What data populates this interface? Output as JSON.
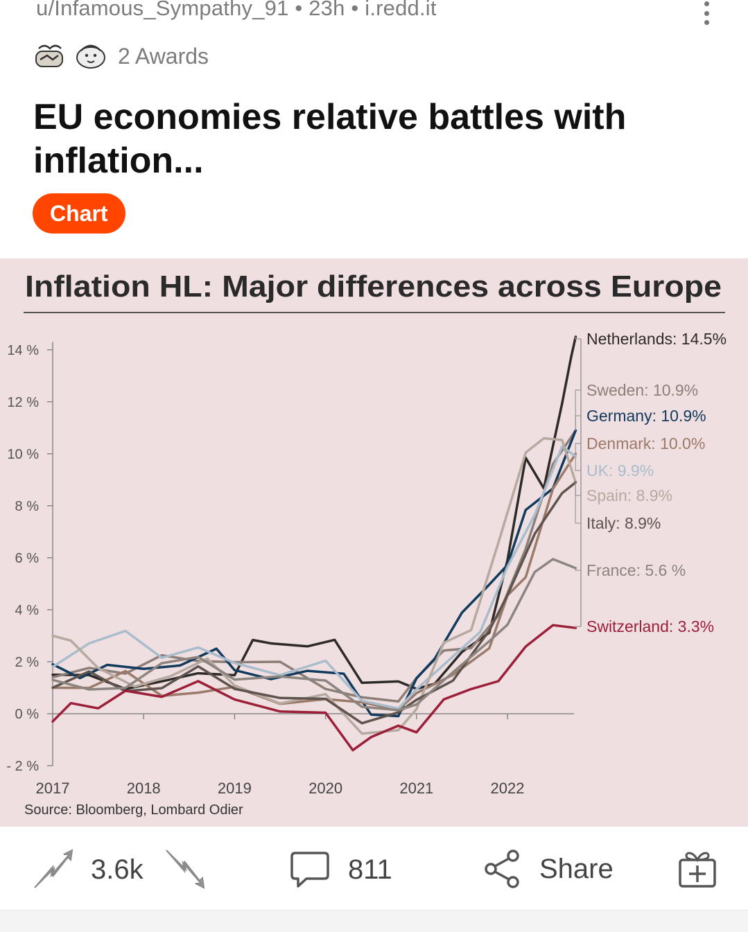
{
  "post": {
    "meta": "u/Infamous_Sympathy_91 • 23h • i.redd.it",
    "awards_label": "2 Awards",
    "title": "EU economies relative battles with inflation...",
    "flair": "Chart",
    "flair_color": "#ff4500"
  },
  "actions": {
    "score": "3.6k",
    "comments": "811",
    "share_label": "Share"
  },
  "icons": [
    "more-vert-icon",
    "award-wholesome-icon",
    "award-seal-icon",
    "upvote-icon",
    "downvote-icon",
    "comment-icon",
    "share-icon",
    "gift-award-icon"
  ],
  "chart_data": {
    "type": "line",
    "title": "Inflation HL: Major differences across Europe",
    "source": "Source: Bloomberg, Lombard Odier",
    "ylim": [
      -2,
      14.5
    ],
    "yticks": [
      -2,
      0,
      2,
      4,
      6,
      8,
      10,
      12,
      14
    ],
    "ytick_labels": [
      "- 2 %",
      "0 %",
      "2 %",
      "4 %",
      "6 %",
      "8 %",
      "10 %",
      "12 %",
      "14 %"
    ],
    "xlim": [
      2017,
      2022.8
    ],
    "xticks": [
      2017,
      2018,
      2019,
      2020,
      2021,
      2022
    ],
    "xtick_labels": [
      "2017",
      "2018",
      "2019",
      "2020",
      "2021",
      "2022"
    ],
    "grid": false,
    "series": [
      {
        "name": "Netherlands",
        "label": "Netherlands: 14.5%",
        "end": 14.5,
        "color": "#2e2a28",
        "x": [
          2017.0,
          2017.4,
          2017.8,
          2018.2,
          2018.6,
          2019.0,
          2019.2,
          2019.4,
          2019.8,
          2020.1,
          2020.4,
          2020.8,
          2021.0,
          2021.2,
          2021.5,
          2021.8,
          2022.0,
          2022.2,
          2022.4,
          2022.6,
          2022.7,
          2022.75
        ],
        "y": [
          1.5,
          1.3,
          1.2,
          1.1,
          1.5,
          1.7,
          2.6,
          2.8,
          2.7,
          2.6,
          1.4,
          1.2,
          0.8,
          1.4,
          2.2,
          3.1,
          6.1,
          9.6,
          8.8,
          12.0,
          13.5,
          14.5
        ]
      },
      {
        "name": "Sweden",
        "label": "Sweden: 10.9%",
        "end": 10.9,
        "color": "#8d7f78",
        "x": [
          2017.0,
          2017.4,
          2017.8,
          2018.2,
          2018.6,
          2019.0,
          2019.5,
          2020.0,
          2020.4,
          2020.8,
          2021.0,
          2021.3,
          2021.6,
          2021.9,
          2022.2,
          2022.5,
          2022.75
        ],
        "y": [
          1.4,
          1.8,
          1.7,
          2.0,
          2.2,
          2.0,
          1.8,
          1.2,
          0.5,
          0.4,
          1.6,
          2.2,
          2.6,
          3.9,
          6.1,
          9.8,
          10.9
        ]
      },
      {
        "name": "Germany",
        "label": "Germany: 10.9%",
        "end": 10.9,
        "color": "#123a5c",
        "x": [
          2017.0,
          2017.3,
          2017.6,
          2018.0,
          2018.4,
          2018.8,
          2019.0,
          2019.4,
          2019.8,
          2020.2,
          2020.5,
          2020.8,
          2021.0,
          2021.2,
          2021.5,
          2021.8,
          2022.0,
          2022.2,
          2022.5,
          2022.75
        ],
        "y": [
          1.9,
          1.6,
          1.8,
          1.6,
          2.1,
          2.3,
          1.7,
          1.5,
          1.4,
          1.7,
          0.0,
          -0.3,
          1.6,
          2.0,
          3.8,
          5.2,
          5.5,
          7.9,
          8.8,
          10.9
        ]
      },
      {
        "name": "Denmark",
        "label": "Denmark: 10.0%",
        "end": 10.0,
        "color": "#9c7a6a",
        "x": [
          2017.0,
          2017.4,
          2017.8,
          2018.2,
          2018.6,
          2019.0,
          2019.5,
          2020.0,
          2020.4,
          2020.8,
          2021.0,
          2021.4,
          2021.8,
          2022.0,
          2022.2,
          2022.5,
          2022.75
        ],
        "y": [
          1.0,
          1.2,
          1.4,
          0.8,
          0.9,
          0.8,
          0.6,
          0.5,
          0.3,
          0.4,
          0.6,
          1.5,
          2.7,
          4.3,
          5.4,
          8.7,
          10.0
        ]
      },
      {
        "name": "UK",
        "label": "UK: 9.9%",
        "end": 9.9,
        "color": "#a9bccc",
        "x": [
          2017.0,
          2017.4,
          2017.8,
          2018.2,
          2018.6,
          2019.0,
          2019.5,
          2020.0,
          2020.4,
          2020.8,
          2021.0,
          2021.3,
          2021.7,
          2022.0,
          2022.3,
          2022.6,
          2022.75
        ],
        "y": [
          1.8,
          2.7,
          3.0,
          2.4,
          2.4,
          1.9,
          1.7,
          1.8,
          0.6,
          0.3,
          0.7,
          2.1,
          3.1,
          5.5,
          7.9,
          10.1,
          9.9
        ]
      },
      {
        "name": "Spain",
        "label": "Spain: 8.9%",
        "end": 8.9,
        "color": "#b5a9a0",
        "x": [
          2017.0,
          2017.2,
          2017.5,
          2017.9,
          2018.3,
          2018.7,
          2019.0,
          2019.5,
          2020.0,
          2020.4,
          2020.8,
          2021.0,
          2021.3,
          2021.6,
          2021.9,
          2022.2,
          2022.4,
          2022.6,
          2022.75
        ],
        "y": [
          3.0,
          2.6,
          1.8,
          1.2,
          1.2,
          2.3,
          1.1,
          0.2,
          1.0,
          -0.9,
          -0.7,
          0.4,
          2.5,
          3.3,
          6.7,
          9.8,
          10.8,
          10.5,
          8.9
        ]
      },
      {
        "name": "Italy",
        "label": "Italy: 8.9%",
        "end": 8.9,
        "color": "#5e534d",
        "x": [
          2017.0,
          2017.4,
          2017.8,
          2018.2,
          2018.6,
          2019.0,
          2019.5,
          2020.0,
          2020.4,
          2020.8,
          2021.0,
          2021.4,
          2021.8,
          2022.0,
          2022.3,
          2022.6,
          2022.75
        ],
        "y": [
          1.0,
          1.4,
          1.1,
          0.9,
          1.7,
          1.2,
          0.4,
          0.6,
          -0.2,
          -0.2,
          0.7,
          1.3,
          3.0,
          4.8,
          6.8,
          8.4,
          8.9
        ]
      },
      {
        "name": "France",
        "label": "France: 5.6 %",
        "end": 5.6,
        "color": "#8c847f",
        "x": [
          2017.0,
          2017.4,
          2017.8,
          2018.2,
          2018.6,
          2019.0,
          2019.5,
          2020.0,
          2020.4,
          2020.8,
          2021.0,
          2021.4,
          2021.8,
          2022.0,
          2022.3,
          2022.5,
          2022.75
        ],
        "y": [
          1.3,
          0.9,
          1.2,
          1.7,
          2.3,
          1.4,
          1.2,
          1.5,
          0.2,
          0.0,
          0.6,
          1.4,
          2.8,
          3.6,
          5.2,
          6.1,
          5.6
        ]
      },
      {
        "name": "Switzerland",
        "label": "Switzerland: 3.3%",
        "end": 3.3,
        "color": "#9c1f3a",
        "x": [
          2017.0,
          2017.2,
          2017.5,
          2017.8,
          2018.2,
          2018.6,
          2019.0,
          2019.5,
          2020.0,
          2020.3,
          2020.5,
          2020.8,
          2021.0,
          2021.3,
          2021.6,
          2021.9,
          2022.2,
          2022.5,
          2022.75
        ],
        "y": [
          -0.3,
          0.6,
          0.2,
          0.7,
          0.9,
          1.1,
          0.5,
          0.3,
          -0.2,
          -1.3,
          -0.8,
          -0.7,
          -0.5,
          0.5,
          0.8,
          1.5,
          2.4,
          3.4,
          3.3
        ]
      }
    ]
  }
}
